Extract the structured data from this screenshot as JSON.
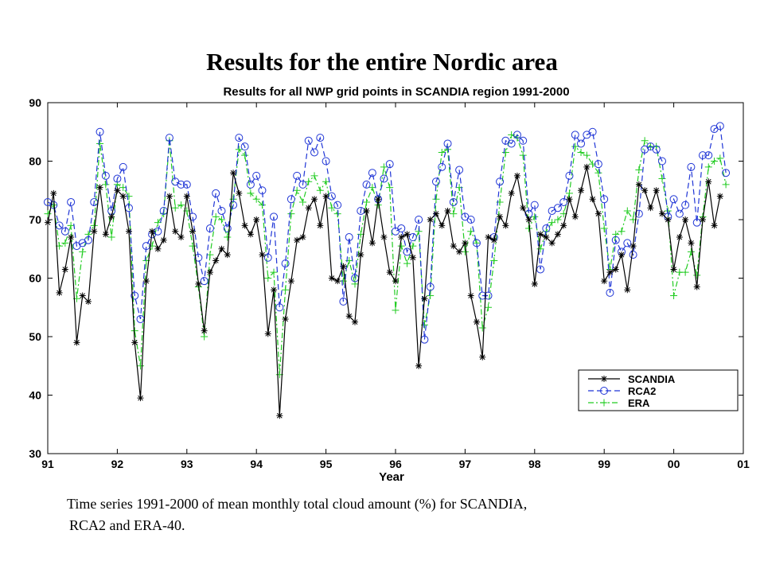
{
  "slide": {
    "title": "Results for the entire Nordic area",
    "caption_line1": "Time series 1991-2000 of mean monthly total cloud amount (%) for SCANDIA,",
    "caption_line2": "RCA2 and ERA-40."
  },
  "chart_data": {
    "type": "line",
    "title": "Results for all NWP grid points in SCANDIA region 1991-2000",
    "xlabel": "Year",
    "ylabel": "",
    "xlim": [
      1991,
      2001
    ],
    "ylim": [
      30,
      90
    ],
    "x_ticks": [
      1991,
      1992,
      1993,
      1994,
      1995,
      1996,
      1997,
      1998,
      1999,
      2000,
      2001
    ],
    "x_tick_labels": [
      "91",
      "92",
      "93",
      "94",
      "95",
      "96",
      "97",
      "98",
      "99",
      "00",
      "01"
    ],
    "y_ticks": [
      30,
      40,
      50,
      60,
      70,
      80,
      90
    ],
    "y_tick_labels": [
      "30",
      "40",
      "50",
      "60",
      "70",
      "80",
      "90"
    ],
    "grid": false,
    "legend_position": "bottom-right",
    "x_start": 1991.0,
    "x_step_years": 0.08333,
    "series": [
      {
        "name": "SCANDIA",
        "color": "#000000",
        "marker": "asterisk",
        "dash": "solid",
        "values": [
          69.5,
          74.5,
          57.5,
          61.5,
          67.0,
          49.0,
          57.0,
          56.0,
          68.0,
          75.5,
          67.5,
          70.5,
          75.0,
          74.0,
          68.0,
          49.0,
          39.5,
          59.5,
          68.0,
          65.0,
          66.5,
          74.0,
          68.0,
          67.0,
          74.0,
          68.0,
          59.0,
          51.0,
          61.0,
          63.0,
          65.0,
          64.0,
          78.0,
          74.5,
          69.0,
          67.5,
          70.0,
          64.0,
          50.5,
          58.0,
          36.5,
          53.0,
          59.5,
          66.5,
          67.0,
          72.0,
          73.5,
          69.0,
          74.0,
          60.0,
          59.5,
          62.0,
          53.5,
          52.5,
          64.0,
          71.5,
          66.0,
          73.5,
          67.0,
          61.0,
          59.5,
          67.0,
          67.5,
          63.5,
          45.0,
          56.5,
          70.0,
          71.0,
          69.0,
          71.5,
          65.5,
          64.5,
          66.0,
          57.0,
          52.5,
          46.5,
          67.0,
          66.5,
          70.5,
          69.0,
          74.5,
          77.5,
          72.0,
          70.0,
          59.0,
          67.5,
          67.0,
          66.0,
          67.5,
          69.0,
          73.5,
          70.5,
          75.0,
          79.0,
          73.5,
          71.0,
          59.5,
          61.0,
          61.5,
          64.0,
          58.0,
          65.5,
          76.0,
          75.0,
          72.0,
          75.0,
          71.0,
          70.0,
          61.5,
          67.0,
          70.0,
          66.0,
          58.5,
          70.0,
          76.5,
          69.0,
          74.0
        ]
      },
      {
        "name": "RCA2",
        "color": "#1f35d6",
        "marker": "circle",
        "dash": "dashed",
        "values": [
          73.0,
          72.5,
          69.0,
          68.0,
          73.0,
          65.5,
          66.0,
          66.5,
          73.0,
          85.0,
          77.5,
          71.5,
          77.0,
          79.0,
          72.0,
          57.0,
          53.0,
          65.5,
          67.5,
          68.0,
          71.5,
          84.0,
          76.5,
          76.0,
          76.0,
          70.5,
          63.5,
          59.5,
          68.5,
          74.5,
          71.5,
          68.5,
          72.5,
          84.0,
          82.5,
          76.0,
          77.5,
          75.0,
          63.5,
          70.5,
          55.0,
          62.5,
          73.5,
          77.5,
          76.0,
          83.5,
          81.5,
          84.0,
          80.0,
          74.0,
          72.5,
          56.0,
          67.0,
          60.0,
          71.5,
          76.0,
          78.0,
          73.5,
          77.0,
          79.5,
          68.0,
          68.5,
          64.5,
          67.0,
          70.0,
          49.5,
          58.5,
          76.5,
          79.0,
          83.0,
          73.0,
          78.5,
          70.5,
          70.0,
          66.0,
          57.0,
          57.0,
          67.0,
          76.5,
          83.5,
          83.0,
          84.5,
          83.5,
          71.0,
          72.5,
          61.5,
          68.5,
          71.5,
          72.0,
          73.0,
          77.5,
          84.5,
          83.0,
          84.5,
          85.0,
          79.5,
          73.5,
          57.5,
          66.5,
          64.5,
          66.0,
          64.0,
          71.0,
          82.0,
          82.5,
          82.0,
          80.0,
          70.5,
          73.5,
          71.0,
          72.5,
          79.0,
          69.5,
          81.0,
          81.0,
          85.5,
          86.0,
          78.0
        ]
      },
      {
        "name": "ERA",
        "color": "#22cc22",
        "marker": "plus",
        "dash": "dashdot",
        "values": [
          71.0,
          72.5,
          65.5,
          66.0,
          69.0,
          56.5,
          64.5,
          67.5,
          69.0,
          83.0,
          76.0,
          67.0,
          76.0,
          75.5,
          74.0,
          51.0,
          45.0,
          63.0,
          65.5,
          69.5,
          71.0,
          83.5,
          72.0,
          72.5,
          71.5,
          65.5,
          58.5,
          50.0,
          64.0,
          70.5,
          70.0,
          67.0,
          73.5,
          82.0,
          81.0,
          74.5,
          73.5,
          72.5,
          60.0,
          61.0,
          43.5,
          58.0,
          71.0,
          75.0,
          73.0,
          76.5,
          77.5,
          75.0,
          76.5,
          72.0,
          71.0,
          59.5,
          63.0,
          59.0,
          67.5,
          73.0,
          75.5,
          72.5,
          79.0,
          75.5,
          54.5,
          65.5,
          62.5,
          65.5,
          68.0,
          52.0,
          57.0,
          73.5,
          81.5,
          82.0,
          71.0,
          75.5,
          64.5,
          68.0,
          66.0,
          51.5,
          55.0,
          63.0,
          73.0,
          81.5,
          84.5,
          84.0,
          81.0,
          68.5,
          70.5,
          65.0,
          68.0,
          69.5,
          70.0,
          71.0,
          74.5,
          82.5,
          81.5,
          81.0,
          79.5,
          78.0,
          68.5,
          61.5,
          67.5,
          68.0,
          71.5,
          70.0,
          78.5,
          83.5,
          82.5,
          82.5,
          77.0,
          71.5,
          57.0,
          61.0,
          61.0,
          64.5,
          60.5,
          70.5,
          79.0,
          80.0,
          80.5,
          76.0
        ]
      }
    ]
  }
}
